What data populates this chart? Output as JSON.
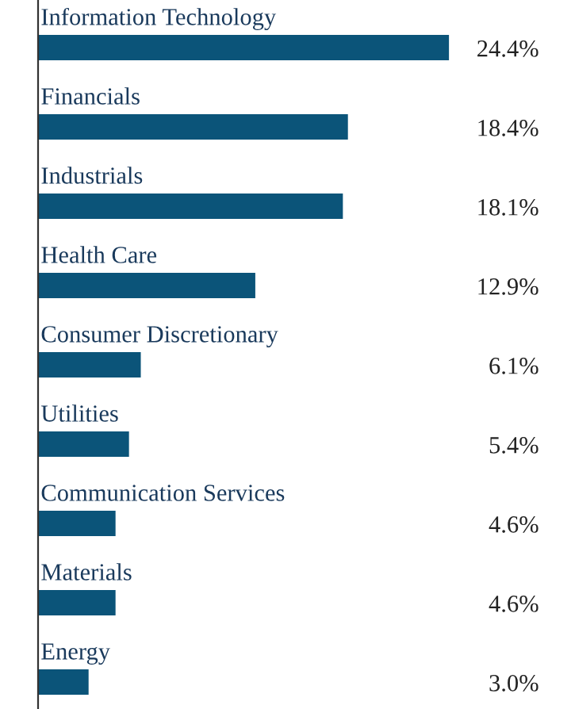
{
  "chart_data": {
    "type": "bar",
    "orientation": "horizontal",
    "categories": [
      "Information Technology",
      "Financials",
      "Industrials",
      "Health Care",
      "Consumer Discretionary",
      "Utilities",
      "Communication Services",
      "Materials",
      "Energy"
    ],
    "values": [
      24.4,
      18.4,
      18.1,
      12.9,
      6.1,
      5.4,
      4.6,
      4.6,
      3.0
    ],
    "value_labels": [
      "24.4%",
      "18.4%",
      "18.1%",
      "12.9%",
      "6.1%",
      "5.4%",
      "4.6%",
      "4.6%",
      "3.0%"
    ],
    "color": "#0b5479"
  }
}
